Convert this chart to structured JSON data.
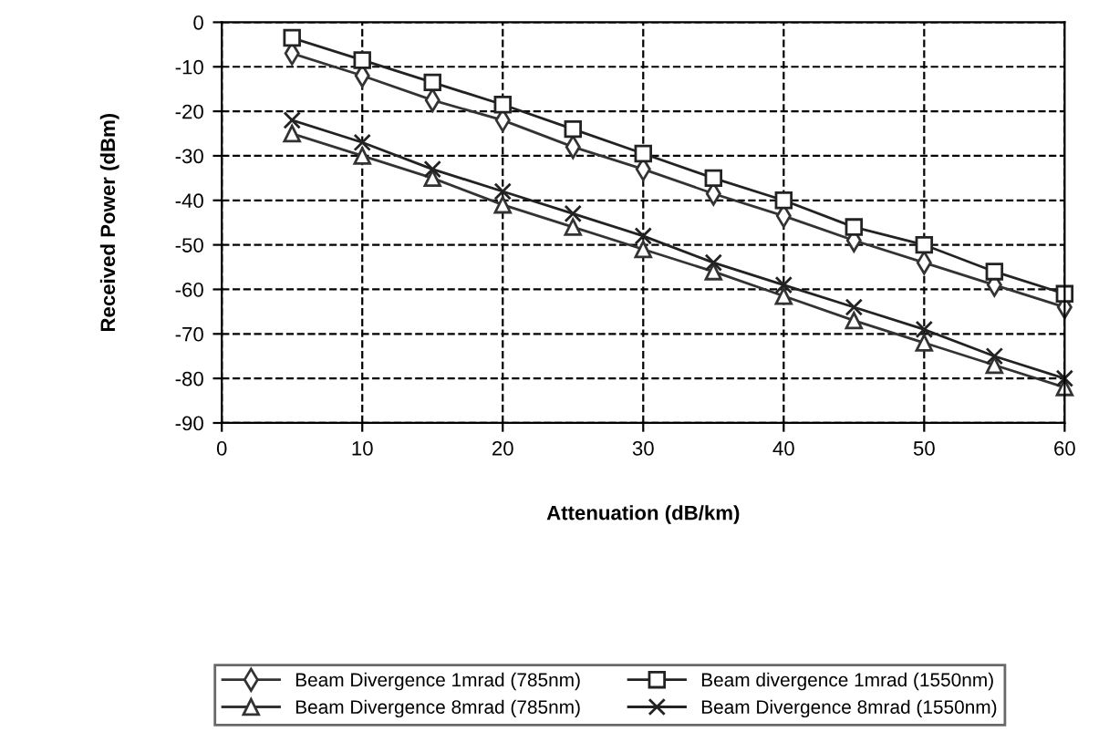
{
  "chart_data": {
    "type": "line",
    "xlabel": "Attenuation (dB/km)",
    "ylabel": "Received Power (dBm)",
    "x": [
      5,
      10,
      15,
      20,
      25,
      30,
      35,
      40,
      45,
      50,
      55,
      60
    ],
    "series": [
      {
        "name": "Beam Divergence 1mrad (785nm)",
        "color": "#333333",
        "marker": "diamond",
        "values": [
          -7,
          -12,
          -17.5,
          -22,
          -28,
          -33,
          -38.5,
          -43.5,
          -49,
          -54,
          -59,
          -64
        ]
      },
      {
        "name": "Beam divergence 1mrad (1550nm)",
        "color": "#222222",
        "marker": "square",
        "values": [
          -3.5,
          -8.5,
          -13.5,
          -18.5,
          -24,
          -29.5,
          -35,
          -40,
          -46,
          -50,
          -56,
          -61
        ]
      },
      {
        "name": "Beam Divergence 8mrad (785nm)",
        "color": "#333333",
        "marker": "triangle",
        "values": [
          -25,
          -30,
          -35,
          -41,
          -46,
          -51,
          -56,
          -61.5,
          -67,
          -72,
          -77,
          -82
        ]
      },
      {
        "name": "Beam Divergence 8mrad (1550nm)",
        "color": "#222222",
        "marker": "cross",
        "values": [
          -22,
          -27,
          -33,
          -38,
          -43,
          -48,
          -54,
          -59,
          -64,
          -69,
          -75,
          -80
        ]
      }
    ],
    "xlim": [
      0,
      60
    ],
    "xticks": [
      0,
      10,
      20,
      30,
      40,
      50,
      60
    ],
    "ylim": [
      -90,
      0
    ],
    "yticks": [
      -90,
      -80,
      -70,
      -60,
      -50,
      -40,
      -30,
      -20,
      -10,
      0
    ],
    "grid": true,
    "legend": "bottom",
    "line_style": "solid"
  }
}
